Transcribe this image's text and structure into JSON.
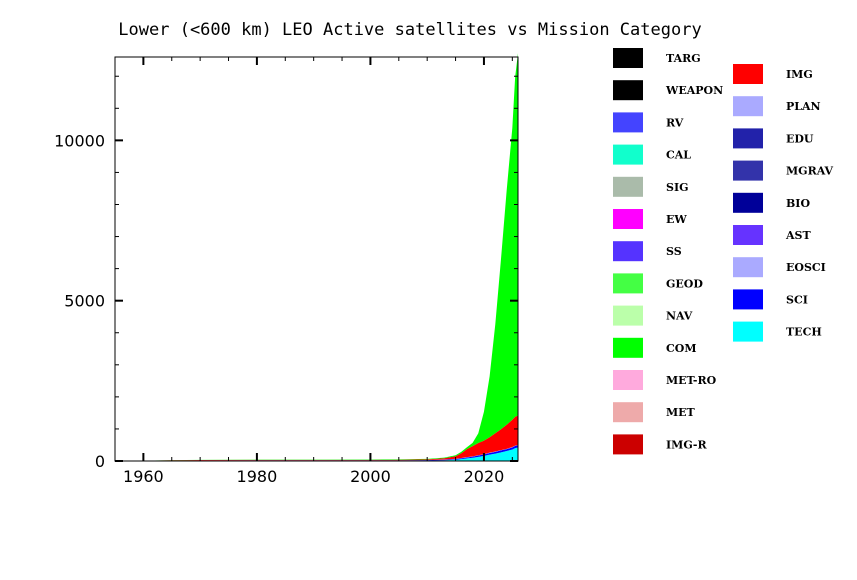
{
  "chart_data": {
    "type": "area",
    "stacked": true,
    "title": "Lower (<600 km) LEO Active satellites vs Mission Category",
    "xlabel": "",
    "ylabel": "",
    "xlim": [
      1955,
      2026
    ],
    "ylim": [
      0,
      12600
    ],
    "xticks": [
      1960,
      1980,
      2000,
      2020
    ],
    "yticks": [
      0,
      5000,
      10000
    ],
    "x": [
      1957,
      1960,
      1965,
      1970,
      1980,
      1990,
      2000,
      2005,
      2010,
      2013,
      2015,
      2016,
      2017,
      2018,
      2019,
      2020,
      2021,
      2022,
      2023,
      2024,
      2025,
      2025.5,
      2026
    ],
    "series": [
      {
        "name": "TECH",
        "color": "#00ffff",
        "values": [
          0,
          2,
          5,
          5,
          8,
          8,
          8,
          10,
          15,
          25,
          40,
          60,
          80,
          100,
          130,
          160,
          200,
          230,
          270,
          310,
          360,
          400,
          420
        ]
      },
      {
        "name": "SCI",
        "color": "#0000ff",
        "values": [
          0,
          3,
          8,
          12,
          12,
          10,
          10,
          10,
          12,
          15,
          20,
          25,
          30,
          35,
          40,
          45,
          50,
          55,
          60,
          60,
          65,
          70,
          70
        ]
      },
      {
        "name": "EOSCI",
        "color": "#aaaaff",
        "values": [
          0,
          0,
          2,
          3,
          4,
          4,
          5,
          5,
          5,
          6,
          8,
          8,
          9,
          10,
          10,
          10,
          10,
          10,
          10,
          10,
          10,
          10,
          10
        ]
      },
      {
        "name": "IMG",
        "color": "#ff0000",
        "values": [
          0,
          3,
          8,
          10,
          12,
          12,
          12,
          15,
          20,
          40,
          80,
          150,
          250,
          320,
          380,
          420,
          480,
          570,
          650,
          750,
          850,
          900,
          920
        ]
      },
      {
        "name": "COM",
        "color": "#00ff00",
        "values": [
          0,
          1,
          3,
          5,
          8,
          10,
          12,
          12,
          15,
          20,
          30,
          40,
          60,
          100,
          300,
          900,
          1900,
          3400,
          5300,
          7300,
          9100,
          10600,
          11300
        ]
      },
      {
        "name": "GEOD",
        "color": "#44ff44",
        "values": [
          0,
          0,
          1,
          1,
          1,
          1,
          1,
          1,
          1,
          1,
          1,
          1,
          1,
          1,
          1,
          1,
          1,
          1,
          1,
          1,
          1,
          1,
          1
        ]
      }
    ]
  },
  "legend": {
    "col1": [
      {
        "label": "TARG",
        "color": "#000000"
      },
      {
        "label": "WEAPON",
        "color": "#000000"
      },
      {
        "label": "RV",
        "color": "#4444ff"
      },
      {
        "label": "CAL",
        "color": "#11ffcc"
      },
      {
        "label": "SIG",
        "color": "#aabbaa"
      },
      {
        "label": "EW",
        "color": "#ff00ff"
      },
      {
        "label": "SS",
        "color": "#5533ff"
      },
      {
        "label": "GEOD",
        "color": "#44ff44"
      },
      {
        "label": "NAV",
        "color": "#bbffaa"
      },
      {
        "label": "COM",
        "color": "#00ff00"
      },
      {
        "label": "MET-RO",
        "color": "#ffaadd"
      },
      {
        "label": "MET",
        "color": "#eeaaaa"
      },
      {
        "label": "IMG-R",
        "color": "#cc0000"
      }
    ],
    "col2": [
      {
        "label": "IMG",
        "color": "#ff0000"
      },
      {
        "label": "PLAN",
        "color": "#aaaaff"
      },
      {
        "label": "EDU",
        "color": "#2222aa"
      },
      {
        "label": "MGRAV",
        "color": "#3333aa"
      },
      {
        "label": "BIO",
        "color": "#000099"
      },
      {
        "label": "AST",
        "color": "#6633ff"
      },
      {
        "label": "EOSCI",
        "color": "#aaaaff"
      },
      {
        "label": "SCI",
        "color": "#0000ff"
      },
      {
        "label": "TECH",
        "color": "#00ffff"
      }
    ]
  }
}
